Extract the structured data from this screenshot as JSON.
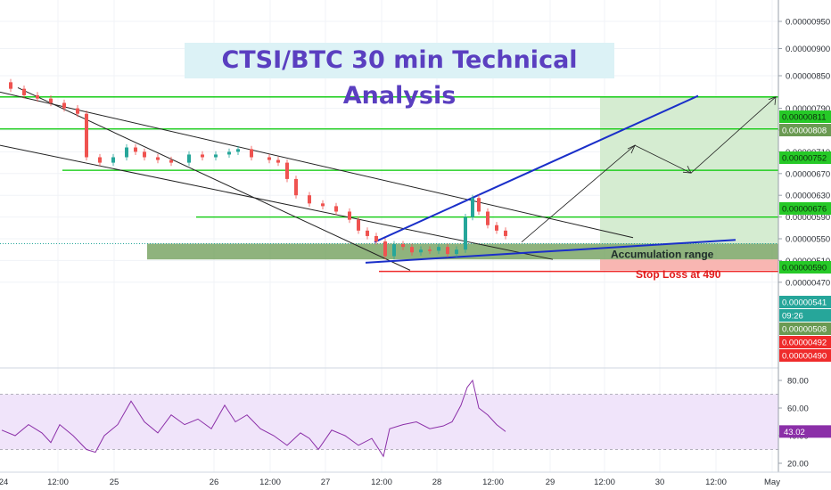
{
  "chart_data": {
    "type": "line",
    "title": "CTSI/BTC 30 min  Technical Analysis",
    "price_axis": {
      "ticks": [
        "0.00000950",
        "0.00000900",
        "0.00000850",
        "0.00000790",
        "0.00000750",
        "0.00000710",
        "0.00000670",
        "0.00000630",
        "0.00000590",
        "0.00000550",
        "0.00000510",
        "0.00000470"
      ],
      "tick_values": [
        950,
        900,
        850,
        790,
        750,
        710,
        670,
        630,
        590,
        550,
        510,
        470
      ],
      "unit": "satoshi",
      "range": [
        462,
        985
      ]
    },
    "time_axis": {
      "labels": [
        "24",
        "12:00",
        "25",
        "26",
        "12:00",
        "27",
        "12:00",
        "28",
        "12:00",
        "29",
        "12:00",
        "30",
        "12:00",
        "May"
      ]
    },
    "horizontal_levels": [
      {
        "label": "0.00000811",
        "value": 811,
        "color": "#00c800",
        "badge": "green"
      },
      {
        "label": "0.00000808",
        "value": 808,
        "color": "#00c800",
        "badge": "darkgreen"
      },
      {
        "label": "0.00000752",
        "value": 752,
        "color": "#00c800",
        "badge": "green"
      },
      {
        "label": "0.00000676",
        "value": 676,
        "color": "#00c800",
        "badge": "green"
      },
      {
        "label": "0.00000590",
        "value": 590,
        "color": "#00c800",
        "badge": "green"
      },
      {
        "label": "0.00000541",
        "value": 541,
        "color": "#26a69a",
        "badge": "teal"
      },
      {
        "label": "09:26",
        "value": 530,
        "color": "#26a69a",
        "badge": "teal"
      },
      {
        "label": "0.00000508",
        "value": 508,
        "color": "#6a9a52",
        "badge": "darkgreen"
      },
      {
        "label": "0.00000492",
        "value": 492,
        "color": "#ef2b2b",
        "badge": "red"
      },
      {
        "label": "0.00000490",
        "value": 490,
        "color": "#ef2b2b",
        "badge": "red"
      }
    ],
    "accumulation_zone": {
      "label": "Accumulation range",
      "low": 512,
      "high": 541
    },
    "stop_loss": {
      "label": "Stop Loss at 490",
      "value": 490
    },
    "target_zone": {
      "low": 541,
      "high": 811
    },
    "price_series": [
      [
        0,
        838
      ],
      [
        10,
        826
      ],
      [
        25,
        814
      ],
      [
        40,
        808
      ],
      [
        55,
        800
      ],
      [
        70,
        790
      ],
      [
        85,
        780
      ],
      [
        95,
        700
      ],
      [
        110,
        690
      ],
      [
        125,
        700
      ],
      [
        140,
        718
      ],
      [
        150,
        710
      ],
      [
        160,
        700
      ],
      [
        175,
        695
      ],
      [
        190,
        690
      ],
      [
        210,
        705
      ],
      [
        225,
        700
      ],
      [
        240,
        705
      ],
      [
        255,
        710
      ],
      [
        265,
        715
      ],
      [
        280,
        700
      ],
      [
        300,
        695
      ],
      [
        310,
        690
      ],
      [
        320,
        660
      ],
      [
        330,
        630
      ],
      [
        345,
        615
      ],
      [
        360,
        610
      ],
      [
        375,
        600
      ],
      [
        390,
        585
      ],
      [
        400,
        565
      ],
      [
        410,
        555
      ],
      [
        420,
        545
      ],
      [
        430,
        518
      ],
      [
        440,
        540
      ],
      [
        450,
        535
      ],
      [
        460,
        525
      ],
      [
        470,
        530
      ],
      [
        480,
        528
      ],
      [
        490,
        535
      ],
      [
        500,
        522
      ],
      [
        510,
        530
      ],
      [
        520,
        590
      ],
      [
        528,
        625
      ],
      [
        535,
        600
      ],
      [
        545,
        575
      ],
      [
        555,
        565
      ],
      [
        565,
        555
      ]
    ],
    "rsi": {
      "ticks": [
        "80.00",
        "60.00",
        "40.00",
        "20.00"
      ],
      "tick_values": [
        80,
        60,
        40,
        20
      ],
      "upper": 70,
      "lower": 30,
      "current": "43.02",
      "current_value": 43,
      "values": [
        [
          0,
          44
        ],
        [
          15,
          40
        ],
        [
          30,
          48
        ],
        [
          45,
          42
        ],
        [
          55,
          35
        ],
        [
          65,
          48
        ],
        [
          80,
          40
        ],
        [
          95,
          30
        ],
        [
          105,
          28
        ],
        [
          115,
          40
        ],
        [
          130,
          48
        ],
        [
          145,
          65
        ],
        [
          160,
          50
        ],
        [
          175,
          42
        ],
        [
          190,
          55
        ],
        [
          205,
          48
        ],
        [
          220,
          52
        ],
        [
          235,
          45
        ],
        [
          250,
          62
        ],
        [
          262,
          50
        ],
        [
          275,
          55
        ],
        [
          290,
          45
        ],
        [
          305,
          40
        ],
        [
          320,
          33
        ],
        [
          335,
          42
        ],
        [
          345,
          38
        ],
        [
          355,
          30
        ],
        [
          370,
          44
        ],
        [
          385,
          40
        ],
        [
          400,
          33
        ],
        [
          415,
          38
        ],
        [
          428,
          25
        ],
        [
          435,
          45
        ],
        [
          450,
          48
        ],
        [
          465,
          50
        ],
        [
          480,
          45
        ],
        [
          495,
          47
        ],
        [
          505,
          50
        ],
        [
          515,
          62
        ],
        [
          522,
          75
        ],
        [
          528,
          80
        ],
        [
          535,
          60
        ],
        [
          545,
          55
        ],
        [
          555,
          48
        ],
        [
          565,
          43
        ]
      ]
    }
  },
  "colors": {
    "level": "#00c800",
    "trend_blue": "#1a2fc9",
    "stop": "#ef2b2b",
    "zone": "#6a9a52",
    "target": "#d5ecd1",
    "title": "#5a3fc0",
    "rsi_band": "#f0e4fa",
    "rsi_line": "#8b2fa8",
    "candle_up": "#26a69a",
    "candle_down": "#ef5350"
  }
}
